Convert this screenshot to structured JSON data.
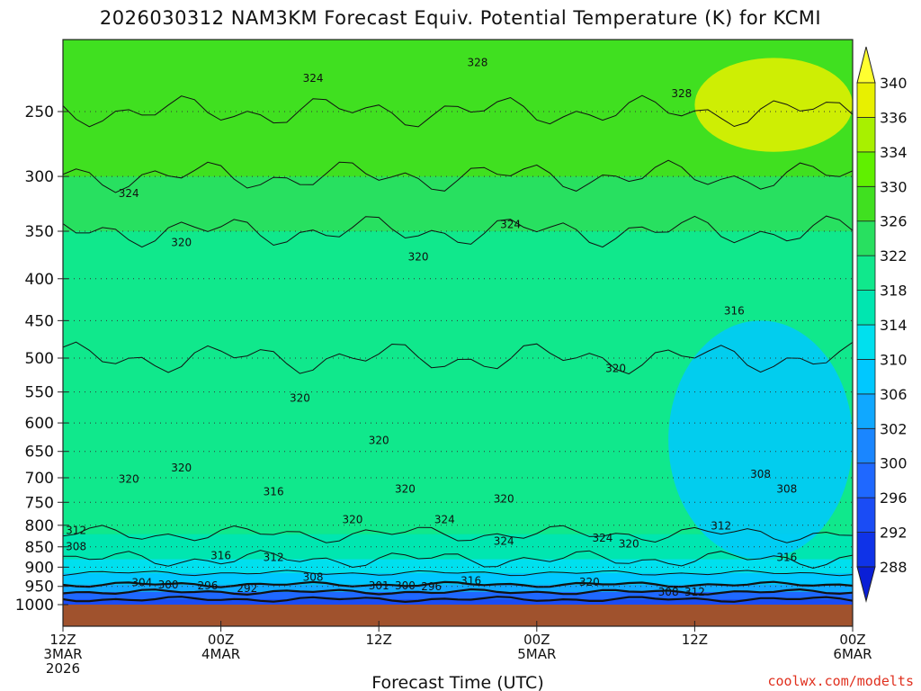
{
  "chart_data": {
    "type": "heatmap",
    "title": "2026030312 NAM3KM Forecast Equiv. Potential Temperature (K) for KCMI",
    "xlabel": "Forecast Time (UTC)",
    "ylabel": "",
    "y_axis": {
      "scale": "log",
      "inverted": true,
      "unit": "hPa",
      "ticks": [
        250,
        300,
        350,
        400,
        450,
        500,
        550,
        600,
        650,
        700,
        750,
        800,
        850,
        900,
        950,
        1000
      ]
    },
    "x_axis": {
      "range_hours": [
        0,
        60
      ],
      "ticks": [
        {
          "hour": 0,
          "lines": [
            "12Z",
            "3MAR",
            "2026"
          ]
        },
        {
          "hour": 12,
          "lines": [
            "00Z",
            "4MAR"
          ]
        },
        {
          "hour": 24,
          "lines": [
            "12Z"
          ]
        },
        {
          "hour": 36,
          "lines": [
            "00Z",
            "5MAR"
          ]
        },
        {
          "hour": 48,
          "lines": [
            "12Z"
          ]
        },
        {
          "hour": 60,
          "lines": [
            "00Z",
            "6MAR"
          ]
        }
      ]
    },
    "colorbar": {
      "unit": "K",
      "levels": [
        288,
        292,
        296,
        300,
        302,
        306,
        310,
        314,
        318,
        322,
        326,
        330,
        334,
        336,
        340
      ],
      "colors": [
        "#0a1fd6",
        "#0f33e8",
        "#1a4cf5",
        "#1f68ff",
        "#1a86ff",
        "#10a8ff",
        "#00c8ff",
        "#00e0ee",
        "#00e6b0",
        "#10e88c",
        "#28e060",
        "#40e020",
        "#60f000",
        "#a8f000",
        "#e8f000",
        "#ffff30"
      ]
    },
    "layers": [
      {
        "p_bottom": 1000,
        "p_top": 985,
        "theta_e": 292
      },
      {
        "p_bottom": 985,
        "p_top": 965,
        "theta_e": 298
      },
      {
        "p_bottom": 965,
        "p_top": 945,
        "theta_e": 304
      },
      {
        "p_bottom": 945,
        "p_top": 915,
        "theta_e": 308
      },
      {
        "p_bottom": 915,
        "p_top": 880,
        "theta_e": 312
      },
      {
        "p_bottom": 880,
        "p_top": 820,
        "theta_e": 316
      },
      {
        "p_bottom": 820,
        "p_top": 500,
        "theta_e": 320
      },
      {
        "p_bottom": 500,
        "p_top": 350,
        "theta_e": 320
      },
      {
        "p_bottom": 350,
        "p_top": 300,
        "theta_e": 324
      },
      {
        "p_bottom": 300,
        "p_top": 250,
        "theta_e": 326
      },
      {
        "p_bottom": 250,
        "p_top": 215,
        "theta_e": 328
      }
    ],
    "features": [
      {
        "label": "dry air pocket",
        "hour_from": 46,
        "hour_to": 60,
        "p_bottom": 880,
        "p_top": 450,
        "theta_e": 306
      },
      {
        "label": "upper warm pocket",
        "hour_from": 48,
        "hour_to": 60,
        "p_bottom": 280,
        "p_top": 215,
        "theta_e": 336
      }
    ],
    "contour_labels": [
      {
        "text": "328",
        "hour": 31.5,
        "p": 220
      },
      {
        "text": "324",
        "hour": 19,
        "p": 230
      },
      {
        "text": "328",
        "hour": 47,
        "p": 240
      },
      {
        "text": "324",
        "hour": 5,
        "p": 318
      },
      {
        "text": "324",
        "hour": 34,
        "p": 347
      },
      {
        "text": "320",
        "hour": 9,
        "p": 365
      },
      {
        "text": "320",
        "hour": 27,
        "p": 380
      },
      {
        "text": "316",
        "hour": 51,
        "p": 442
      },
      {
        "text": "320",
        "hour": 42,
        "p": 520
      },
      {
        "text": "320",
        "hour": 18,
        "p": 565
      },
      {
        "text": "320",
        "hour": 24,
        "p": 637
      },
      {
        "text": "320",
        "hour": 9,
        "p": 688
      },
      {
        "text": "320",
        "hour": 5,
        "p": 710
      },
      {
        "text": "316",
        "hour": 16,
        "p": 735
      },
      {
        "text": "320",
        "hour": 26,
        "p": 730
      },
      {
        "text": "320",
        "hour": 33.5,
        "p": 750
      },
      {
        "text": "308",
        "hour": 53,
        "p": 700
      },
      {
        "text": "308",
        "hour": 55,
        "p": 730
      },
      {
        "text": "320",
        "hour": 22,
        "p": 795
      },
      {
        "text": "324",
        "hour": 29,
        "p": 795
      },
      {
        "text": "312",
        "hour": 50,
        "p": 810
      },
      {
        "text": "312",
        "hour": 1,
        "p": 820
      },
      {
        "text": "308",
        "hour": 1,
        "p": 858
      },
      {
        "text": "324",
        "hour": 33.5,
        "p": 845
      },
      {
        "text": "324",
        "hour": 41,
        "p": 838
      },
      {
        "text": "320",
        "hour": 43,
        "p": 852
      },
      {
        "text": "316",
        "hour": 12,
        "p": 880
      },
      {
        "text": "312",
        "hour": 16,
        "p": 885
      },
      {
        "text": "316",
        "hour": 55,
        "p": 885
      },
      {
        "text": "308",
        "hour": 19,
        "p": 935
      },
      {
        "text": "304",
        "hour": 6,
        "p": 950
      },
      {
        "text": "300",
        "hour": 8,
        "p": 955
      },
      {
        "text": "296",
        "hour": 11,
        "p": 958
      },
      {
        "text": "292",
        "hour": 14,
        "p": 965
      },
      {
        "text": "316",
        "hour": 31,
        "p": 945
      },
      {
        "text": "301",
        "hour": 24,
        "p": 958
      },
      {
        "text": "300",
        "hour": 26,
        "p": 958
      },
      {
        "text": "296",
        "hour": 28,
        "p": 960
      },
      {
        "text": "320",
        "hour": 40,
        "p": 948
      },
      {
        "text": "308",
        "hour": 46,
        "p": 975
      },
      {
        "text": "312",
        "hour": 48,
        "p": 975
      }
    ]
  },
  "credit": "coolwx.com/modelts"
}
